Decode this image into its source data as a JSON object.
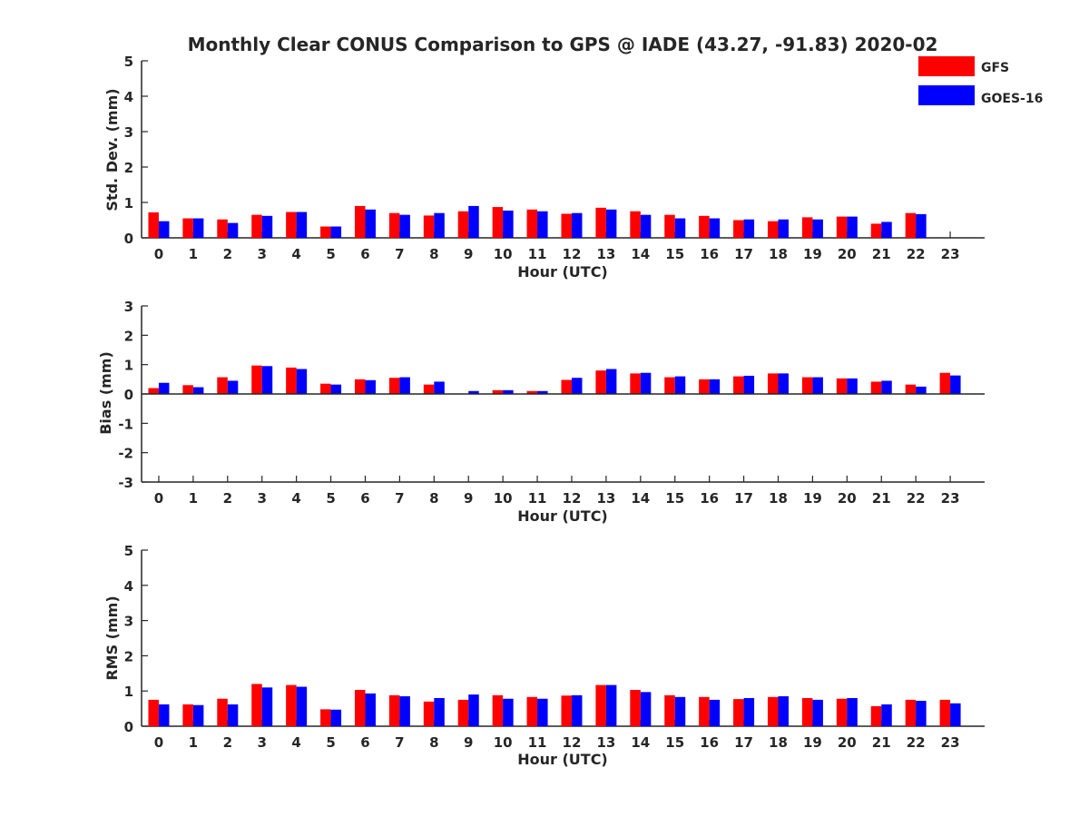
{
  "chart_data": {
    "type": "bar",
    "title": "Monthly Clear CONUS Comparison to GPS @ IADE (43.27, -91.83) 2020-02",
    "legend": {
      "placement": "top-right",
      "entries": [
        {
          "name": "GFS",
          "color": "#ff0000"
        },
        {
          "name": "GOES-16",
          "color": "#0000ff"
        }
      ]
    },
    "categories": [
      "0",
      "1",
      "2",
      "3",
      "4",
      "5",
      "6",
      "7",
      "8",
      "9",
      "10",
      "11",
      "12",
      "13",
      "14",
      "15",
      "16",
      "17",
      "18",
      "19",
      "20",
      "21",
      "22",
      "23"
    ],
    "panels": [
      {
        "id": "std",
        "ylabel": "Std. Dev. (mm)",
        "xlabel": "Hour (UTC)",
        "ylim": [
          0,
          5
        ],
        "yticks": [
          0,
          1,
          2,
          3,
          4,
          5
        ],
        "series": [
          {
            "name": "GFS",
            "color": "#ff0000",
            "values": [
              0.72,
              0.55,
              0.52,
              0.65,
              0.73,
              0.32,
              0.9,
              0.7,
              0.63,
              0.75,
              0.87,
              0.8,
              0.68,
              0.85,
              0.75,
              0.65,
              0.62,
              0.5,
              0.47,
              0.58,
              0.6,
              0.4,
              0.7,
              null
            ]
          },
          {
            "name": "GOES-16",
            "color": "#0000ff",
            "values": [
              0.47,
              0.55,
              0.42,
              0.62,
              0.73,
              0.32,
              0.8,
              0.65,
              0.7,
              0.9,
              0.77,
              0.75,
              0.7,
              0.8,
              0.65,
              0.55,
              0.55,
              0.52,
              0.52,
              0.52,
              0.6,
              0.45,
              0.67,
              null
            ]
          }
        ]
      },
      {
        "id": "bias",
        "ylabel": "Bias (mm)",
        "xlabel": "Hour (UTC)",
        "ylim": [
          -3,
          3
        ],
        "yticks": [
          -3,
          -2,
          -1,
          0,
          1,
          2,
          3
        ],
        "series": [
          {
            "name": "GFS",
            "color": "#ff0000",
            "values": [
              0.2,
              0.3,
              0.57,
              0.97,
              0.9,
              0.35,
              0.5,
              0.55,
              0.32,
              0.0,
              0.13,
              0.1,
              0.48,
              0.8,
              0.7,
              0.57,
              0.5,
              0.6,
              0.7,
              0.57,
              0.53,
              0.42,
              0.32,
              0.72
            ]
          },
          {
            "name": "GOES-16",
            "color": "#0000ff",
            "values": [
              0.38,
              0.23,
              0.45,
              0.95,
              0.85,
              0.32,
              0.47,
              0.57,
              0.42,
              0.1,
              0.13,
              0.1,
              0.55,
              0.85,
              0.72,
              0.6,
              0.5,
              0.62,
              0.7,
              0.57,
              0.53,
              0.45,
              0.25,
              0.63
            ]
          }
        ]
      },
      {
        "id": "rms",
        "ylabel": "RMS (mm)",
        "xlabel": "Hour (UTC)",
        "ylim": [
          0,
          5
        ],
        "yticks": [
          0,
          1,
          2,
          3,
          4,
          5
        ],
        "series": [
          {
            "name": "GFS",
            "color": "#ff0000",
            "values": [
              0.75,
              0.62,
              0.78,
              1.2,
              1.17,
              0.48,
              1.03,
              0.88,
              0.7,
              0.75,
              0.88,
              0.83,
              0.87,
              1.17,
              1.03,
              0.88,
              0.83,
              0.77,
              0.83,
              0.8,
              0.78,
              0.57,
              0.75,
              0.75
            ]
          },
          {
            "name": "GOES-16",
            "color": "#0000ff",
            "values": [
              0.62,
              0.6,
              0.62,
              1.1,
              1.12,
              0.47,
              0.93,
              0.85,
              0.8,
              0.9,
              0.78,
              0.78,
              0.88,
              1.17,
              0.97,
              0.83,
              0.75,
              0.8,
              0.85,
              0.75,
              0.8,
              0.62,
              0.72,
              0.65
            ]
          }
        ]
      }
    ]
  }
}
